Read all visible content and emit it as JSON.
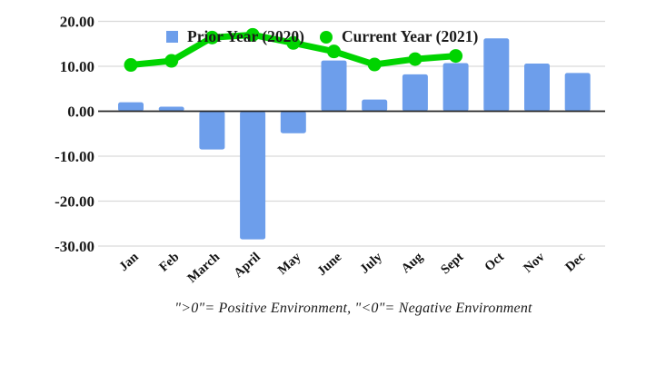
{
  "chart_data": {
    "type": "combo",
    "categories": [
      "Jan",
      "Feb",
      "March",
      "April",
      "May",
      "June",
      "July",
      "Aug",
      "Sept",
      "Oct",
      "Nov",
      "Dec"
    ],
    "series": [
      {
        "name": "Prior Year (2020)",
        "type": "bar",
        "color": "#6d9eeb",
        "values": [
          2.0,
          1.0,
          -8.5,
          -28.5,
          -4.9,
          11.3,
          2.6,
          8.2,
          10.7,
          16.2,
          10.6,
          8.5
        ]
      },
      {
        "name": "Current Year (2021)",
        "type": "line",
        "color": "#00d400",
        "values": [
          10.3,
          11.2,
          16.4,
          17.0,
          15.2,
          13.3,
          10.4,
          11.6,
          12.3,
          null,
          null,
          null
        ]
      }
    ],
    "title": "",
    "xlabel": "",
    "ylabel": "",
    "ylim": [
      -30,
      20
    ],
    "y_axis": {
      "ticks": [
        20,
        10,
        0,
        -10,
        -20,
        -30
      ],
      "tick_labels": [
        "20.00",
        "10.00",
        "0.00",
        "-10.00",
        "-20.00",
        "-30.00"
      ]
    },
    "grid": true,
    "legend_position": "top-inside",
    "gridline_color": "#d9d9d9",
    "zero_axis_color": "#262626"
  },
  "legend": {
    "items": [
      {
        "label": "Prior Year (2020)",
        "color": "#6d9eeb",
        "shape": "square"
      },
      {
        "label": "Current Year (2021)",
        "color": "#00d400",
        "shape": "circle"
      }
    ]
  },
  "caption": "\">0\"= Positive Environment, \"<0\"= Negative Environment"
}
